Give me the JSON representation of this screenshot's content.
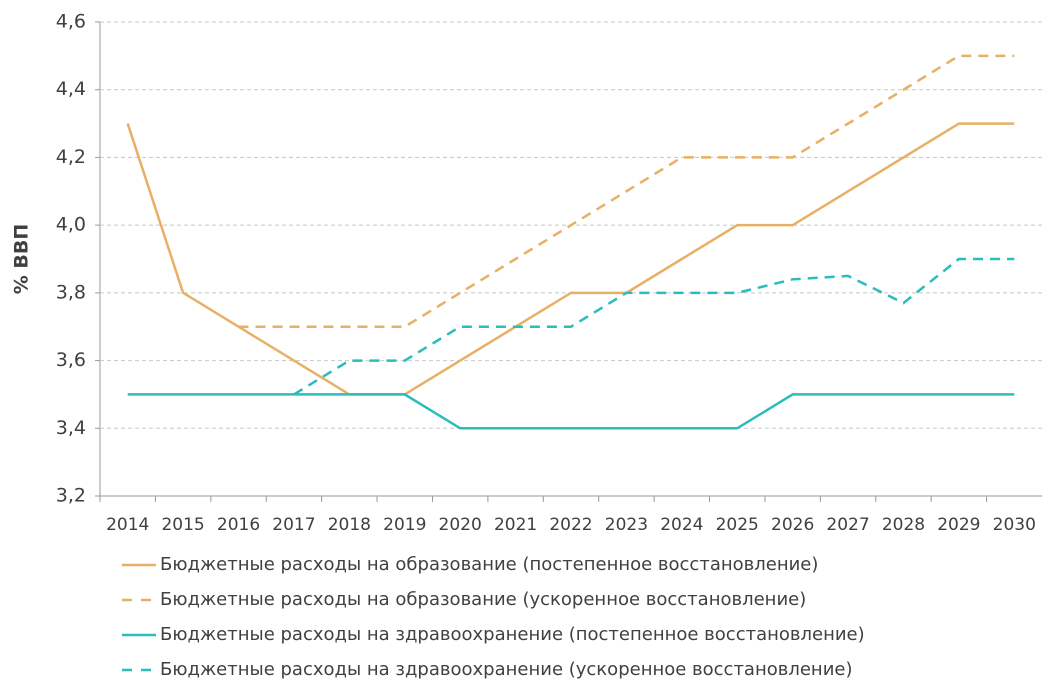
{
  "chart_data": {
    "type": "line",
    "y_label": "% ВВП",
    "categories": [
      "2014",
      "2015",
      "2016",
      "2017",
      "2018",
      "2019",
      "2020",
      "2021",
      "2022",
      "2023",
      "2024",
      "2025",
      "2026",
      "2027",
      "2028",
      "2029",
      "2030"
    ],
    "series": [
      {
        "name": "Бюджетные расходы на образование (постепенное восстановление)",
        "color": "#e8b064",
        "line_style": "solid",
        "values": [
          4.3,
          3.8,
          3.7,
          3.6,
          3.5,
          3.5,
          3.6,
          3.7,
          3.8,
          3.8,
          3.9,
          4.0,
          4.0,
          4.1,
          4.2,
          4.3,
          4.3
        ]
      },
      {
        "name": "Бюджетные расходы на образование (ускоренное восстановление)",
        "color": "#e8b064",
        "line_style": "dashed",
        "values": [
          null,
          null,
          3.7,
          3.7,
          3.7,
          3.7,
          3.8,
          3.9,
          4.0,
          4.1,
          4.2,
          4.2,
          4.2,
          4.3,
          4.4,
          4.5,
          4.5
        ]
      },
      {
        "name": "Бюджетные расходы на здравоохранение (постепенное восстановление)",
        "color": "#2bbcbc",
        "line_style": "solid",
        "values": [
          3.5,
          3.5,
          3.5,
          3.5,
          3.5,
          3.5,
          3.4,
          3.4,
          3.4,
          3.4,
          3.4,
          3.4,
          3.5,
          3.5,
          3.5,
          3.5,
          3.5
        ]
      },
      {
        "name": "Бюджетные расходы на здравоохранение (ускоренное восстановление)",
        "color": "#2bbcbc",
        "line_style": "dashed",
        "values": [
          null,
          null,
          null,
          3.5,
          3.6,
          3.6,
          3.7,
          3.7,
          3.7,
          3.8,
          3.8,
          3.8,
          3.84,
          3.85,
          3.77,
          3.9,
          3.9
        ]
      }
    ],
    "ylim": [
      3.2,
      4.6
    ],
    "yticks": [
      {
        "value": 3.2,
        "label": "3,2"
      },
      {
        "value": 3.4,
        "label": "3,4"
      },
      {
        "value": 3.6,
        "label": "3,6"
      },
      {
        "value": 3.8,
        "label": "3,8"
      },
      {
        "value": 4.0,
        "label": "4,0"
      },
      {
        "value": 4.2,
        "label": "4,2"
      },
      {
        "value": 4.4,
        "label": "4,4"
      },
      {
        "value": 4.6,
        "label": "4,6"
      }
    ],
    "grid": true,
    "legend": "bottom"
  }
}
